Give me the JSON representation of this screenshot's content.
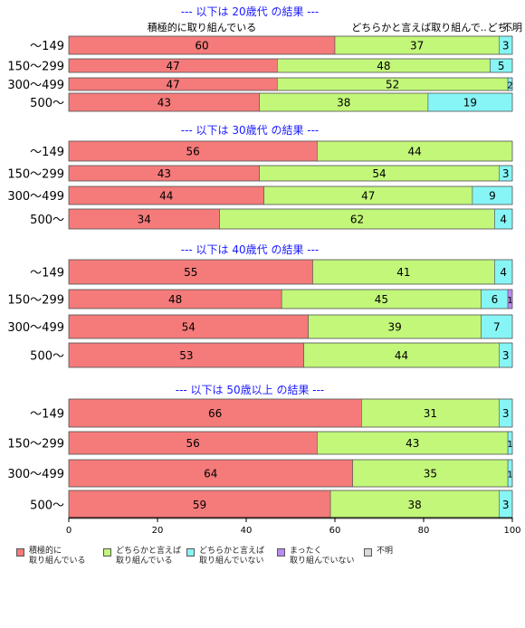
{
  "chart_data": {
    "type": "bar",
    "orientation": "horizontal",
    "stacked": true,
    "xlim": [
      0,
      100
    ],
    "xticks": [
      0,
      20,
      40,
      60,
      80,
      100
    ],
    "grid": false,
    "legend_position": "bottom",
    "column_headers": [
      "積極的に取り組んでいる",
      "どちらかと言えば取り組んで..",
      "どち..",
      "不明"
    ],
    "series": [
      {
        "name": "積極的に\n取り組んでいる",
        "color": "#f57a7a"
      },
      {
        "name": "どちらかと言えば\n取り組んでいる",
        "color": "#c2f779"
      },
      {
        "name": "どちらかと言えば\n取り組んでいない",
        "color": "#87f5f5"
      },
      {
        "name": "まったく\n取り組んでいない",
        "color": "#b98bf3"
      },
      {
        "name": "不明",
        "color": "#d9d9d9"
      }
    ],
    "groups": [
      {
        "title": "--- 以下は 20歳代 の結果 ---",
        "bars": [
          {
            "label": "～149",
            "values": [
              60,
              37,
              3,
              0,
              0
            ]
          },
          {
            "label": "150～299",
            "values": [
              47,
              48,
              5,
              0,
              0
            ]
          },
          {
            "label": "300～499",
            "values": [
              47,
              52,
              2,
              0,
              0
            ]
          },
          {
            "label": "500～",
            "values": [
              43,
              38,
              19,
              0,
              0
            ]
          }
        ]
      },
      {
        "title": "--- 以下は 30歳代 の結果 ---",
        "bars": [
          {
            "label": "～149",
            "values": [
              56,
              44,
              0,
              0,
              0
            ]
          },
          {
            "label": "150～299",
            "values": [
              43,
              54,
              3,
              0,
              0
            ]
          },
          {
            "label": "300～499",
            "values": [
              44,
              47,
              9,
              0,
              0
            ]
          },
          {
            "label": "500～",
            "values": [
              34,
              62,
              4,
              0,
              0
            ]
          }
        ]
      },
      {
        "title": "--- 以下は 40歳代 の結果 ---",
        "bars": [
          {
            "label": "～149",
            "values": [
              55,
              41,
              4,
              0,
              0
            ]
          },
          {
            "label": "150～299",
            "values": [
              48,
              45,
              6,
              1,
              0
            ]
          },
          {
            "label": "300～499",
            "values": [
              54,
              39,
              7,
              0,
              0
            ]
          },
          {
            "label": "500～",
            "values": [
              53,
              44,
              3,
              0,
              0
            ]
          }
        ]
      },
      {
        "title": "--- 以下は 50歳以上 の結果 ---",
        "bars": [
          {
            "label": "～149",
            "values": [
              66,
              31,
              3,
              0,
              0
            ]
          },
          {
            "label": "150～299",
            "values": [
              56,
              43,
              1,
              0,
              0
            ]
          },
          {
            "label": "300～499",
            "values": [
              64,
              35,
              1,
              0,
              0
            ]
          },
          {
            "label": "500～",
            "values": [
              59,
              38,
              3,
              0,
              0
            ]
          }
        ]
      }
    ]
  }
}
